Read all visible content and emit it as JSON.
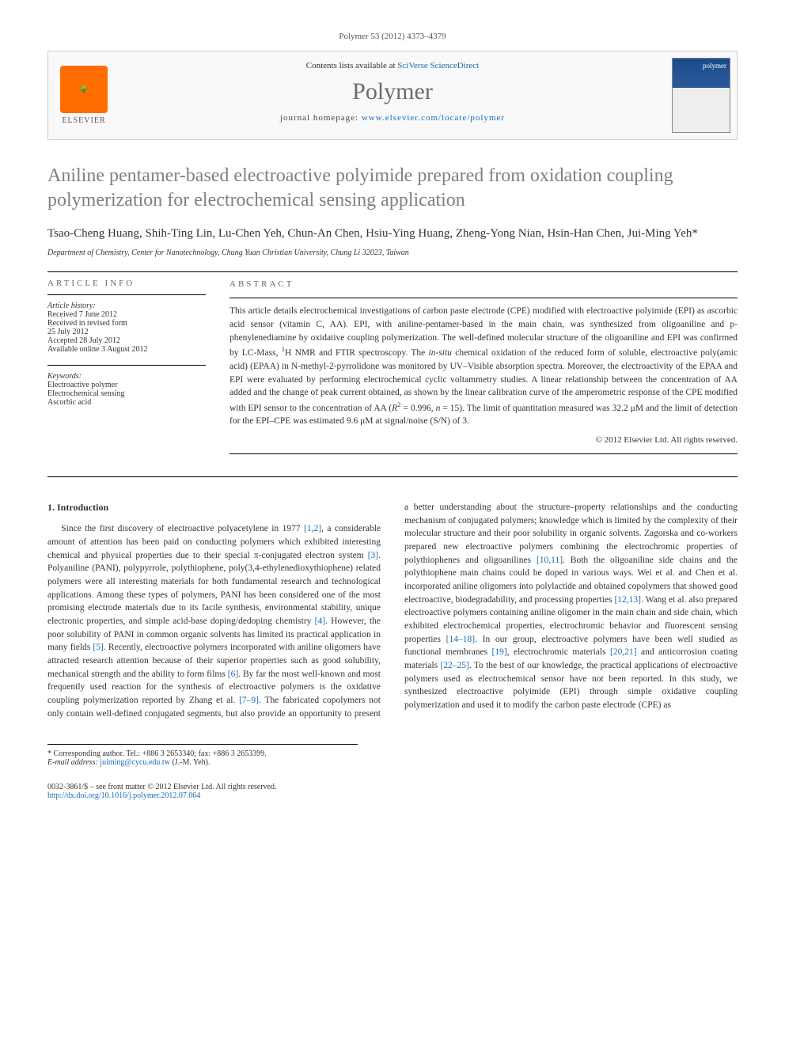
{
  "citation": "Polymer 53 (2012) 4373–4379",
  "header": {
    "contents_prefix": "Contents lists available at ",
    "contents_link": "SciVerse ScienceDirect",
    "journal": "Polymer",
    "homepage_prefix": "journal homepage: ",
    "homepage_link": "www.elsevier.com/locate/polymer",
    "publisher": "ELSEVIER"
  },
  "title": "Aniline pentamer-based electroactive polyimide prepared from oxidation coupling polymerization for electrochemical sensing application",
  "authors": "Tsao-Cheng Huang, Shih-Ting Lin, Lu-Chen Yeh, Chun-An Chen, Hsiu-Ying Huang, Zheng-Yong Nian, Hsin-Han Chen, Jui-Ming Yeh*",
  "affiliation": "Department of Chemistry, Center for Nanotechnology, Chung Yuan Christian University, Chung Li 32023, Taiwan",
  "article_info": {
    "heading": "ARTICLE INFO",
    "history_label": "Article history:",
    "history": [
      "Received 7 June 2012",
      "Received in revised form",
      "25 July 2012",
      "Accepted 28 July 2012",
      "Available online 3 August 2012"
    ],
    "keywords_label": "Keywords:",
    "keywords": [
      "Electroactive polymer",
      "Electrochemical sensing",
      "Ascorbic acid"
    ]
  },
  "abstract": {
    "heading": "ABSTRACT",
    "text_parts": [
      "This article details electrochemical investigations of carbon paste electrode (CPE) modified with electroactive polyimide (EPI) as ascorbic acid sensor (vitamin C, AA). EPI, with aniline-pentamer-based in the main chain, was synthesized from oligoaniline and p-phenylenediamine by oxidative coupling polymerization. The well-defined molecular structure of the oligoaniline and EPI was confirmed by LC-Mass, ",
      "H NMR and FTIR spectroscopy. The ",
      " chemical oxidation of the reduced form of soluble, electroactive poly(amic acid) (EPAA) in N-methyl-2-pyrrolidone was monitored by UV–Visible absorption spectra. Moreover, the electroactivity of the EPAA and EPI were evaluated by performing electrochemical cyclic voltammetry studies. A linear relationship between the concentration of AA added and the change of peak current obtained, as shown by the linear calibration curve of the amperometric response of the CPE modified with EPI sensor to the concentration of AA (",
      " = 0.996, ",
      " = 15). The limit of quantitation measured was 32.2 μM and the limit of detection for the EPI–CPE was estimated 9.6 μM at signal/noise (S/N) of 3."
    ],
    "sup1": "1",
    "insitu": "in-situ",
    "r2": "R",
    "r2sup": "2",
    "n": "n",
    "copyright": "© 2012 Elsevier Ltd. All rights reserved."
  },
  "intro": {
    "heading": "1. Introduction",
    "p1a": "Since the first discovery of electroactive polyacetylene in 1977 ",
    "ref1": "[1,2]",
    "p1b": ", a considerable amount of attention has been paid on conducting polymers which exhibited interesting chemical and physical properties due to their special π-conjugated electron system ",
    "ref2": "[3]",
    "p1c": ". Polyaniline (PANI), polypyrrole, polythiophene, poly(3,4-ethylenedioxythiophene) related polymers were all interesting materials for both fundamental research and technological applications. Among these types of polymers, PANI has been considered one of the most promising electrode materials due to its facile synthesis, environmental stability, unique electronic properties, and simple acid-base doping/dedoping chemistry ",
    "ref3": "[4]",
    "p1d": ". However, the poor solubility of PANI in common organic solvents has limited its practical application in many fields ",
    "ref4": "[5]",
    "p1e": ". Recently, electroactive polymers incorporated with aniline oligomers have attracted research attention because of their superior properties such as good solubility, mechanical strength and the ability to form films ",
    "ref5": "[6]",
    "p1f": ". By far the most well-known and most frequently used reaction for the synthesis of electroactive polymers is the oxidative coupling ",
    "p2a": "polymerization reported by Zhang et al. ",
    "ref6": "[7–9]",
    "p2b": ". The fabricated copolymers not only contain well-defined conjugated segments, but also provide an opportunity to present a better understanding about the structure–property relationships and the conducting mechanism of conjugated polymers; knowledge which is limited by the complexity of their molecular structure and their poor solubility in organic solvents. Zagorska and co-workers prepared new electroactive polymers combining the electrochromic properties of polythiophenes and oligoanilines ",
    "ref7": "[10,11]",
    "p2c": ". Both the oligoaniline side chains and the polythiophene main chains could be doped in various ways. Wei et al. and Chen et al. incorporated aniline oligomers into polylactide and obtained copolymers that showed good electroactive, biodegradability, and processing properties ",
    "ref8": "[12,13]",
    "p2d": ". Wang et al. also prepared electroactive polymers containing aniline oligomer in the main chain and side chain, which exhibited electrochemical properties, electrochromic behavior and fluorescent sensing properties ",
    "ref9": "[14–18]",
    "p2e": ". In our group, electroactive polymers have been well studied as functional membranes ",
    "ref10": "[19]",
    "p2f": ", electrochromic materials ",
    "ref11": "[20,21]",
    "p2g": " and anticorrosion coating materials ",
    "ref12": "[22–25]",
    "p2h": ". To the best of our knowledge, the practical applications of electroactive polymers used as electrochemical sensor have not been reported. In this study, we synthesized electroactive polyimide (EPI) through simple oxidative coupling polymerization and used it to modify the carbon paste electrode (CPE) as"
  },
  "footnote": {
    "corr": "* Corresponding author. Tel.: +886 3 2653340; fax: +886 3 2653399.",
    "email_label": "E-mail address: ",
    "email": "juiming@cycu.edu.tw",
    "email_suffix": " (J.-M. Yeh)."
  },
  "footer": {
    "issn": "0032-3861/$ – see front matter © 2012 Elsevier Ltd. All rights reserved.",
    "doi": "http://dx.doi.org/10.1016/j.polymer.2012.07.064"
  },
  "colors": {
    "link": "#1a6bb5",
    "title_gray": "#808080",
    "elsevier_orange": "#ff6c00"
  }
}
